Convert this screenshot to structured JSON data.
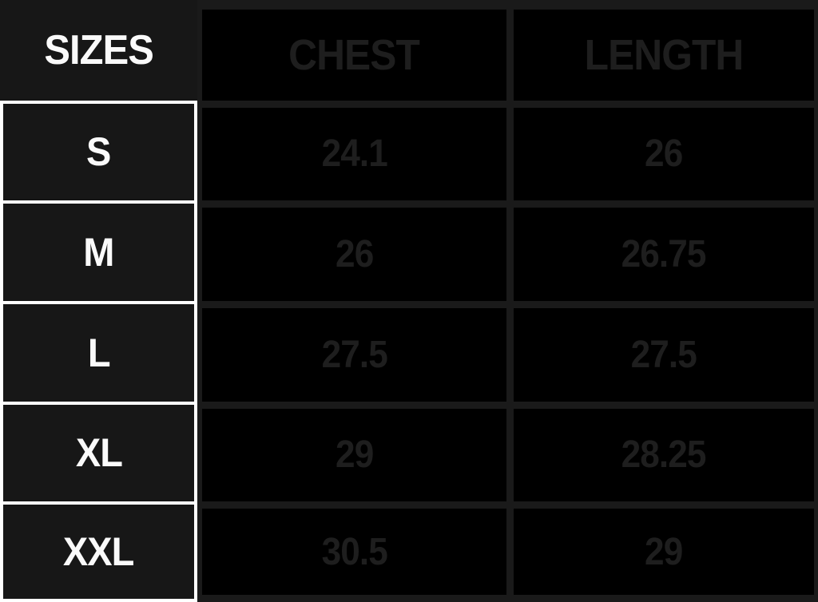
{
  "chart_data": {
    "type": "table",
    "columns": [
      "SIZES",
      "CHEST",
      "LENGTH"
    ],
    "rows": [
      [
        "S",
        "24.1",
        "26"
      ],
      [
        "M",
        "26",
        "26.75"
      ],
      [
        "L",
        "27.5",
        "27.5"
      ],
      [
        "XL",
        "29",
        "28.25"
      ],
      [
        "XXL",
        "30.5",
        "29"
      ]
    ],
    "layout": {
      "legend": "none",
      "grid": "on"
    }
  },
  "colors": {
    "table_background": "#000000",
    "size_column_background": "#171717",
    "size_column_text": "#ffffff",
    "size_column_border": "#ffffff",
    "data_cell_background": "#000000",
    "data_cell_text": "#1e1e1e",
    "data_grid_line": "#1a1a1a"
  }
}
